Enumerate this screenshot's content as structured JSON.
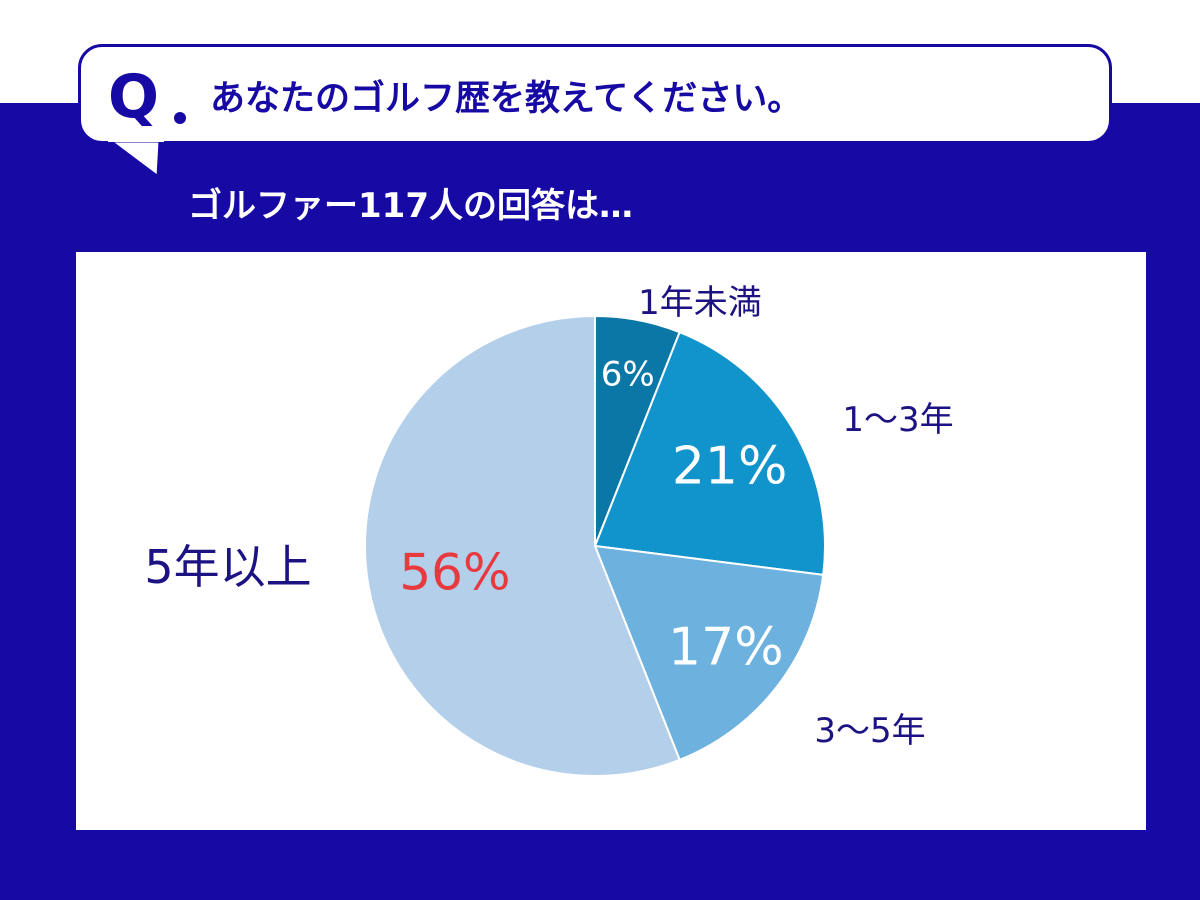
{
  "header": {
    "question_mark": "Q",
    "question": "あなたのゴルフ歴を教えてください。"
  },
  "subtitle": "ゴルファー117人の回答は…",
  "colors": {
    "band": "#1709a3",
    "label_text": "#1c1282",
    "highlight_text": "#e8393f"
  },
  "chart_data": {
    "type": "pie",
    "unit": "%",
    "slices": [
      {
        "label": "1年未満",
        "value": 6,
        "display": "6%",
        "color": "#0b77a6",
        "value_color": "#ffffff"
      },
      {
        "label": "1～3年",
        "value": 21,
        "display": "21%",
        "color": "#1193cb",
        "value_color": "#ffffff"
      },
      {
        "label": "3～5年",
        "value": 17,
        "display": "17%",
        "color": "#6db1de",
        "value_color": "#ffffff"
      },
      {
        "label": "5年以上",
        "value": 56,
        "display": "56%",
        "color": "#b3cfea",
        "value_color": "#e8393f"
      }
    ]
  }
}
